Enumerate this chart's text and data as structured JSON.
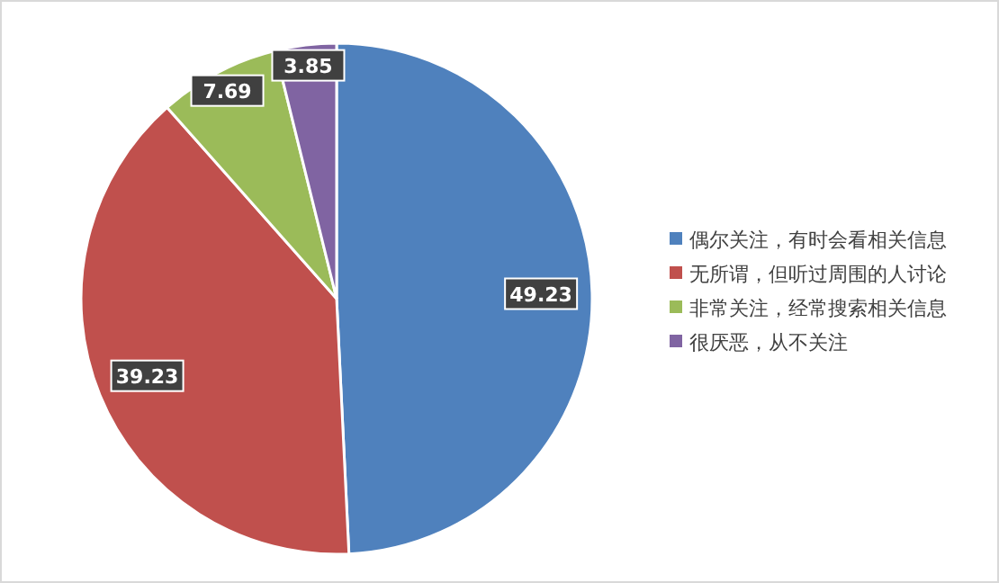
{
  "chart_data": {
    "type": "pie",
    "categories": [
      "偶尔关注，有时会看相关信息",
      "无所谓，但听过周围的人讨论",
      "非常关注，经常搜索相关信息",
      "很厌恶，从不关注"
    ],
    "values": [
      49.23,
      39.23,
      7.69,
      3.85
    ],
    "colors": [
      "#4f81bd",
      "#c0504d",
      "#9bbb59",
      "#8064a2"
    ],
    "data_labels": true,
    "legend": "right"
  }
}
